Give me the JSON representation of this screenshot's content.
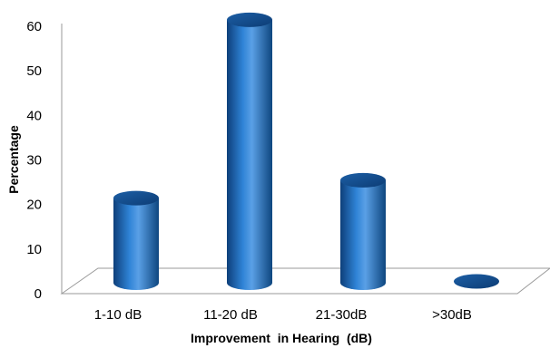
{
  "chart_data": {
    "type": "bar",
    "style": "3d-cylinder",
    "categories": [
      "1-10 dB",
      "11-20 dB",
      "21-30dB",
      ">30dB"
    ],
    "values": [
      19,
      59,
      23,
      0.3
    ],
    "xlabel": "Improvement  in Hearing  (dB)",
    "ylabel": "Percentage",
    "ylim": [
      0,
      60
    ],
    "yticks": [
      "0",
      "10",
      "20",
      "30",
      "40",
      "50",
      "60"
    ],
    "grid": false,
    "legend": "none",
    "colors": {
      "bar": "#1f6fc0",
      "bar_dark": "#0d3f7a",
      "bar_light": "#5aa0e6",
      "floor": "#ffffff",
      "floor_stroke": "#999999"
    }
  }
}
